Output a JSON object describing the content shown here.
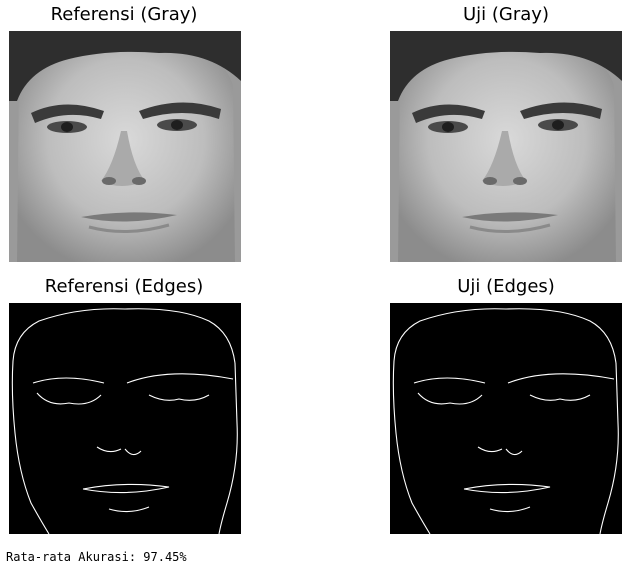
{
  "panels": [
    {
      "title": "Referensi (Gray)",
      "icon": "gray-face-image"
    },
    {
      "title": "Uji (Gray)",
      "icon": "gray-face-image"
    },
    {
      "title": "Referensi (Edges)",
      "icon": "edge-face-image"
    },
    {
      "title": "Uji (Edges)",
      "icon": "edge-face-image"
    }
  ],
  "output": {
    "text": "Rata-rata Akurasi: 97.45%"
  },
  "colors": {
    "background": "#ffffff",
    "edge_background": "#000000",
    "edge_lines": "#ffffff",
    "gray_skin": "#b8b8b8"
  }
}
